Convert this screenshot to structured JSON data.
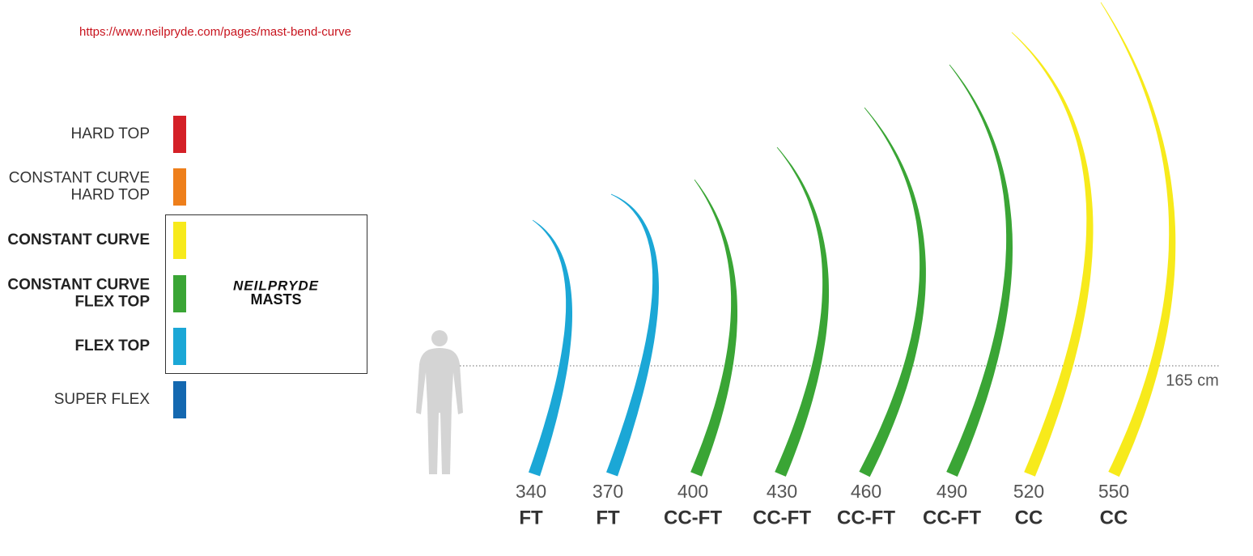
{
  "header": {
    "url": "https://www.neilpryde.com/pages/mast-bend-curve"
  },
  "legend": [
    {
      "label": [
        "HARD TOP"
      ],
      "color": "#d42027",
      "bold": false
    },
    {
      "label": [
        "CONSTANT CURVE",
        "HARD TOP"
      ],
      "color": "#ee7f1b",
      "bold": false
    },
    {
      "label": [
        "CONSTANT CURVE"
      ],
      "color": "#f7ea1b",
      "bold": true
    },
    {
      "label": [
        "CONSTANT CURVE",
        "FLEX TOP"
      ],
      "color": "#3aa535",
      "bold": true
    },
    {
      "label": [
        "FLEX TOP"
      ],
      "color": "#1ba7d6",
      "bold": true
    },
    {
      "label": [
        "SUPER FLEX"
      ],
      "color": "#1468b0",
      "bold": false
    }
  ],
  "brand": {
    "logo": "NEILPRYDE",
    "sub": "MASTS"
  },
  "reference": {
    "label": "165 cm"
  },
  "masts": [
    {
      "length": "340",
      "type": "FT",
      "color": "#1ba7d6"
    },
    {
      "length": "370",
      "type": "FT",
      "color": "#1ba7d6"
    },
    {
      "length": "400",
      "type": "CC-FT",
      "color": "#3aa535"
    },
    {
      "length": "430",
      "type": "CC-FT",
      "color": "#3aa535"
    },
    {
      "length": "460",
      "type": "CC-FT",
      "color": "#3aa535"
    },
    {
      "length": "490",
      "type": "CC-FT",
      "color": "#3aa535"
    },
    {
      "length": "520",
      "type": "CC",
      "color": "#f7ea1b"
    },
    {
      "length": "550",
      "type": "CC",
      "color": "#f7ea1b"
    }
  ]
}
